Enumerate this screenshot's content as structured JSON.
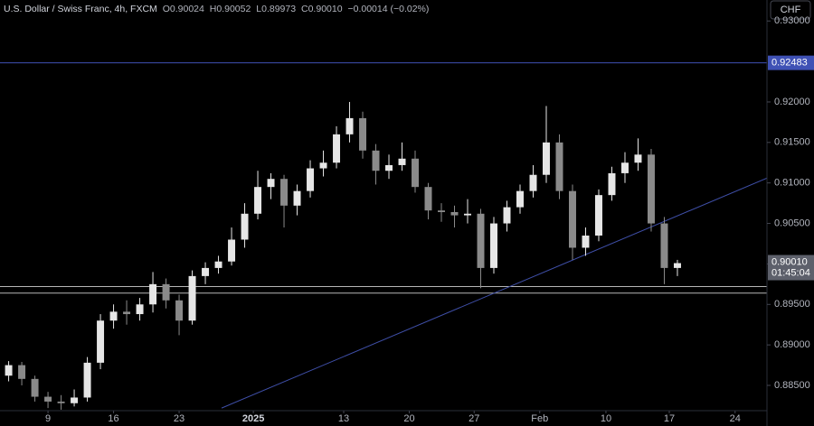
{
  "header": {
    "symbol": "U.S. Dollar / Swiss Franc, 4h, FXCM",
    "o_label": "O",
    "o": "0.90024",
    "h_label": "H",
    "h": "0.90052",
    "l_label": "L",
    "l": "0.89973",
    "c_label": "C",
    "c": "0.90010",
    "change": "−0.00014 (−0.02%)"
  },
  "currency_button": "CHF",
  "chart_data": {
    "type": "candlestick",
    "up_color": "#e6e6e6",
    "down_color": "#8a8a8a",
    "xlim": [
      -3.66,
      54.83
    ],
    "ylim": [
      0.88188,
      0.93259
    ],
    "xticks": [
      {
        "value": 0,
        "label": "9"
      },
      {
        "value": 5,
        "label": "16"
      },
      {
        "value": 10,
        "label": "23"
      },
      {
        "value": 15.66,
        "label": "2025"
      },
      {
        "value": 22.55,
        "label": "13"
      },
      {
        "value": 27.55,
        "label": "20"
      },
      {
        "value": 32.5,
        "label": "27"
      },
      {
        "value": 37.5,
        "label": "Feb"
      },
      {
        "value": 42.55,
        "label": "10"
      },
      {
        "value": 47.38,
        "label": "17"
      },
      {
        "value": 52.4,
        "label": "24"
      }
    ],
    "yticks": [
      {
        "value": 0.885,
        "label": "0.88500"
      },
      {
        "value": 0.89,
        "label": "0.89000"
      },
      {
        "value": 0.895,
        "label": "0.89500"
      },
      {
        "value": 0.9,
        "label": "0.90000"
      },
      {
        "value": 0.905,
        "label": "0.90500"
      },
      {
        "value": 0.91,
        "label": "0.91000"
      },
      {
        "value": 0.915,
        "label": "0.91500"
      },
      {
        "value": 0.92,
        "label": "0.92000"
      },
      {
        "value": 0.93,
        "label": "0.93000"
      }
    ],
    "candles": [
      {
        "x": -3,
        "o": 0.8862,
        "h": 0.888,
        "l": 0.8855,
        "c": 0.8875
      },
      {
        "x": -2,
        "o": 0.8875,
        "h": 0.8879,
        "l": 0.885,
        "c": 0.8858
      },
      {
        "x": -1,
        "o": 0.8858,
        "h": 0.8862,
        "l": 0.883,
        "c": 0.8836
      },
      {
        "x": 0,
        "o": 0.8836,
        "h": 0.8842,
        "l": 0.8822,
        "c": 0.883
      },
      {
        "x": 1,
        "o": 0.883,
        "h": 0.8838,
        "l": 0.882,
        "c": 0.8828
      },
      {
        "x": 2,
        "o": 0.8828,
        "h": 0.8845,
        "l": 0.8824,
        "c": 0.8835
      },
      {
        "x": 3,
        "o": 0.8835,
        "h": 0.8885,
        "l": 0.883,
        "c": 0.8878
      },
      {
        "x": 4,
        "o": 0.8878,
        "h": 0.8938,
        "l": 0.887,
        "c": 0.893
      },
      {
        "x": 5,
        "o": 0.893,
        "h": 0.895,
        "l": 0.892,
        "c": 0.8941
      },
      {
        "x": 6,
        "o": 0.8941,
        "h": 0.8955,
        "l": 0.8925,
        "c": 0.8938
      },
      {
        "x": 7,
        "o": 0.8938,
        "h": 0.8958,
        "l": 0.893,
        "c": 0.895
      },
      {
        "x": 8,
        "o": 0.895,
        "h": 0.899,
        "l": 0.894,
        "c": 0.8975
      },
      {
        "x": 9,
        "o": 0.8975,
        "h": 0.8982,
        "l": 0.8945,
        "c": 0.8955
      },
      {
        "x": 10,
        "o": 0.8955,
        "h": 0.8962,
        "l": 0.8912,
        "c": 0.893
      },
      {
        "x": 11,
        "o": 0.893,
        "h": 0.8992,
        "l": 0.8925,
        "c": 0.8985
      },
      {
        "x": 12,
        "o": 0.8985,
        "h": 0.9002,
        "l": 0.8975,
        "c": 0.8995
      },
      {
        "x": 13,
        "o": 0.8995,
        "h": 0.901,
        "l": 0.8988,
        "c": 0.9003
      },
      {
        "x": 14,
        "o": 0.9003,
        "h": 0.9045,
        "l": 0.8998,
        "c": 0.903
      },
      {
        "x": 15,
        "o": 0.903,
        "h": 0.9075,
        "l": 0.902,
        "c": 0.9062
      },
      {
        "x": 16,
        "o": 0.9062,
        "h": 0.9115,
        "l": 0.9055,
        "c": 0.9095
      },
      {
        "x": 17,
        "o": 0.9095,
        "h": 0.9112,
        "l": 0.908,
        "c": 0.9105
      },
      {
        "x": 18,
        "o": 0.9105,
        "h": 0.911,
        "l": 0.9045,
        "c": 0.9072
      },
      {
        "x": 19,
        "o": 0.9072,
        "h": 0.9098,
        "l": 0.906,
        "c": 0.909
      },
      {
        "x": 20,
        "o": 0.909,
        "h": 0.9128,
        "l": 0.9082,
        "c": 0.9118
      },
      {
        "x": 21,
        "o": 0.9118,
        "h": 0.914,
        "l": 0.9108,
        "c": 0.9125
      },
      {
        "x": 22,
        "o": 0.9125,
        "h": 0.917,
        "l": 0.9118,
        "c": 0.916
      },
      {
        "x": 23,
        "o": 0.916,
        "h": 0.92,
        "l": 0.915,
        "c": 0.918
      },
      {
        "x": 24,
        "o": 0.918,
        "h": 0.9188,
        "l": 0.913,
        "c": 0.914
      },
      {
        "x": 25,
        "o": 0.914,
        "h": 0.9148,
        "l": 0.9098,
        "c": 0.9115
      },
      {
        "x": 26,
        "o": 0.9115,
        "h": 0.9135,
        "l": 0.9105,
        "c": 0.9122
      },
      {
        "x": 27,
        "o": 0.9122,
        "h": 0.915,
        "l": 0.9115,
        "c": 0.913
      },
      {
        "x": 28,
        "o": 0.913,
        "h": 0.914,
        "l": 0.9088,
        "c": 0.9095
      },
      {
        "x": 29,
        "o": 0.9095,
        "h": 0.91,
        "l": 0.9055,
        "c": 0.9066
      },
      {
        "x": 30,
        "o": 0.9066,
        "h": 0.9075,
        "l": 0.9052,
        "c": 0.9064
      },
      {
        "x": 31,
        "o": 0.9064,
        "h": 0.9072,
        "l": 0.9045,
        "c": 0.906
      },
      {
        "x": 32,
        "o": 0.906,
        "h": 0.908,
        "l": 0.905,
        "c": 0.9062
      },
      {
        "x": 33,
        "o": 0.9062,
        "h": 0.9068,
        "l": 0.897,
        "c": 0.8995
      },
      {
        "x": 34,
        "o": 0.8995,
        "h": 0.9058,
        "l": 0.8988,
        "c": 0.905
      },
      {
        "x": 35,
        "o": 0.905,
        "h": 0.9078,
        "l": 0.904,
        "c": 0.907
      },
      {
        "x": 36,
        "o": 0.907,
        "h": 0.9098,
        "l": 0.9062,
        "c": 0.909
      },
      {
        "x": 37,
        "o": 0.909,
        "h": 0.9122,
        "l": 0.9082,
        "c": 0.911
      },
      {
        "x": 38,
        "o": 0.911,
        "h": 0.9195,
        "l": 0.91,
        "c": 0.915
      },
      {
        "x": 39,
        "o": 0.915,
        "h": 0.916,
        "l": 0.908,
        "c": 0.909
      },
      {
        "x": 40,
        "o": 0.909,
        "h": 0.9098,
        "l": 0.9005,
        "c": 0.902
      },
      {
        "x": 41,
        "o": 0.902,
        "h": 0.9045,
        "l": 0.901,
        "c": 0.9035
      },
      {
        "x": 42,
        "o": 0.9035,
        "h": 0.9092,
        "l": 0.9028,
        "c": 0.9085
      },
      {
        "x": 43,
        "o": 0.9085,
        "h": 0.912,
        "l": 0.9078,
        "c": 0.9112
      },
      {
        "x": 44,
        "o": 0.9112,
        "h": 0.9138,
        "l": 0.91,
        "c": 0.9125
      },
      {
        "x": 45,
        "o": 0.9125,
        "h": 0.9155,
        "l": 0.9115,
        "c": 0.9135
      },
      {
        "x": 46,
        "o": 0.9135,
        "h": 0.9142,
        "l": 0.904,
        "c": 0.905
      },
      {
        "x": 47,
        "o": 0.905,
        "h": 0.9058,
        "l": 0.8975,
        "c": 0.8995
      },
      {
        "x": 48,
        "o": 0.8995,
        "h": 0.9005,
        "l": 0.8985,
        "c": 0.9001
      }
    ],
    "levels": [
      {
        "value": 0.92483,
        "color": "#3f51b5",
        "label_color": "#3f51b5",
        "labeled": true
      },
      {
        "value": 0.8972,
        "color": "#b5b5b5",
        "labeled": false
      },
      {
        "value": 0.8964,
        "color": "#b5b5b5",
        "labeled": false
      }
    ],
    "trendline": {
      "x": [
        13.24,
        54.83
      ],
      "y": [
        0.8822,
        0.9106
      ],
      "color": "#3f4fa8"
    },
    "last_price": {
      "value": 0.9001,
      "label": "0.90010",
      "countdown": "01:45:04",
      "color": "#5d606b"
    }
  }
}
